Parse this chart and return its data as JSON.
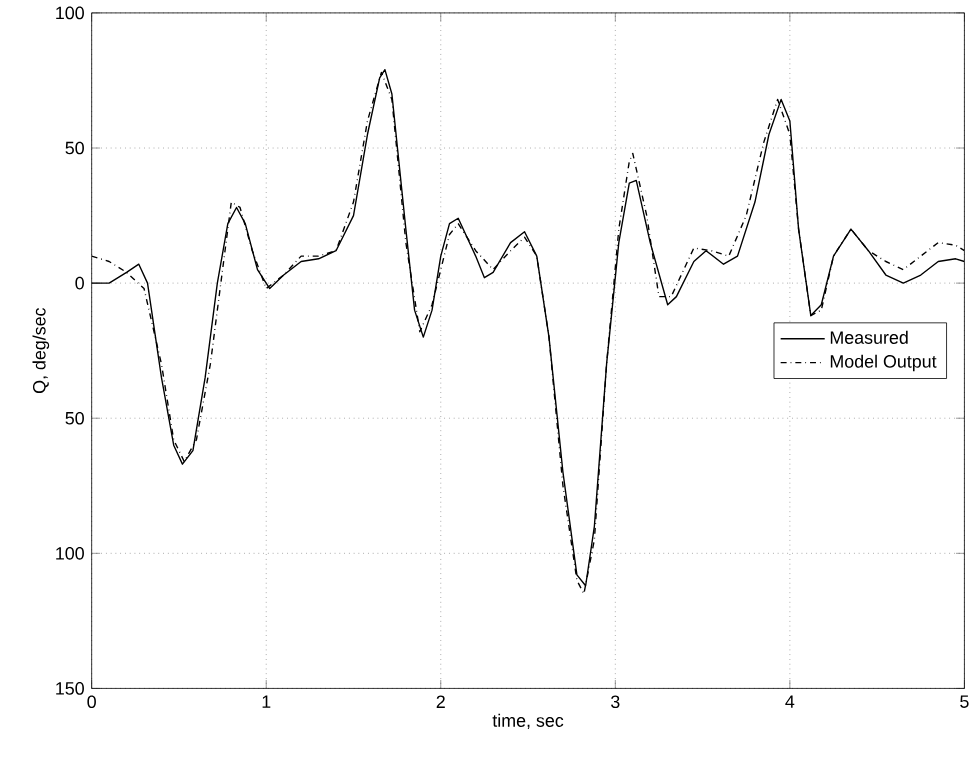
{
  "chart_data": {
    "type": "line",
    "xlabel": "time, sec",
    "ylabel": "Q, deg/sec",
    "xlim": [
      0,
      5
    ],
    "ylim": [
      -150,
      100
    ],
    "xticks": [
      0,
      1,
      2,
      3,
      4,
      5
    ],
    "yticks": [
      100,
      50,
      0,
      {
        "value": -50,
        "label": "50"
      },
      {
        "value": -100,
        "label": "100"
      },
      {
        "value": -150,
        "label": "150"
      }
    ],
    "grid": true,
    "legend": "right",
    "series": [
      {
        "name": "Measured",
        "color": "#000000",
        "line_style": "solid",
        "x": [
          0,
          0.1,
          0.2,
          0.27,
          0.32,
          0.4,
          0.47,
          0.52,
          0.58,
          0.65,
          0.72,
          0.78,
          0.83,
          0.88,
          0.95,
          1.02,
          1.1,
          1.2,
          1.3,
          1.4,
          1.5,
          1.58,
          1.65,
          1.68,
          1.72,
          1.8,
          1.85,
          1.9,
          1.95,
          2.0,
          2.05,
          2.1,
          2.2,
          2.25,
          2.3,
          2.4,
          2.48,
          2.55,
          2.62,
          2.7,
          2.78,
          2.83,
          2.88,
          2.95,
          3.02,
          3.08,
          3.12,
          3.2,
          3.3,
          3.35,
          3.45,
          3.52,
          3.62,
          3.7,
          3.8,
          3.88,
          3.95,
          4.0,
          4.05,
          4.12,
          4.18,
          4.25,
          4.35,
          4.45,
          4.55,
          4.65,
          4.75,
          4.85,
          4.95,
          5.0
        ],
        "values": [
          0,
          0,
          4,
          7,
          0,
          -35,
          -60,
          -67,
          -62,
          -35,
          0,
          22,
          28,
          22,
          5,
          -2,
          3,
          8,
          9,
          12,
          25,
          55,
          76,
          79,
          70,
          20,
          -10,
          -20,
          -10,
          10,
          22,
          24,
          10,
          2,
          4,
          15,
          19,
          10,
          -20,
          -70,
          -108,
          -112,
          -90,
          -30,
          15,
          37,
          38,
          15,
          -8,
          -5,
          8,
          12,
          7,
          10,
          30,
          55,
          68,
          60,
          20,
          -12,
          -8,
          10,
          20,
          12,
          3,
          0,
          3,
          8,
          9,
          8
        ]
      },
      {
        "name": "Model Output",
        "color": "#000000",
        "line_style": "dashdot",
        "x": [
          0,
          0.1,
          0.2,
          0.3,
          0.4,
          0.47,
          0.53,
          0.6,
          0.68,
          0.75,
          0.8,
          0.85,
          0.92,
          1.0,
          1.1,
          1.2,
          1.3,
          1.4,
          1.5,
          1.58,
          1.66,
          1.72,
          1.8,
          1.88,
          1.95,
          2.0,
          2.05,
          2.1,
          2.2,
          2.3,
          2.4,
          2.48,
          2.55,
          2.62,
          2.7,
          2.78,
          2.82,
          2.88,
          2.95,
          3.02,
          3.08,
          3.1,
          3.18,
          3.25,
          3.32,
          3.45,
          3.55,
          3.65,
          3.75,
          3.85,
          3.93,
          4.0,
          4.05,
          4.12,
          4.18,
          4.25,
          4.35,
          4.45,
          4.55,
          4.65,
          4.75,
          4.85,
          4.95,
          5.0
        ],
        "values": [
          10,
          8,
          4,
          -2,
          -30,
          -58,
          -66,
          -58,
          -30,
          5,
          30,
          28,
          12,
          -2,
          3,
          10,
          10,
          12,
          30,
          60,
          78,
          68,
          15,
          -18,
          -8,
          5,
          18,
          22,
          12,
          5,
          12,
          17,
          10,
          -20,
          -75,
          -110,
          -115,
          -95,
          -30,
          20,
          45,
          48,
          25,
          -5,
          -5,
          13,
          12,
          10,
          25,
          52,
          68,
          55,
          20,
          -12,
          -10,
          10,
          20,
          12,
          8,
          5,
          10,
          15,
          14,
          12
        ]
      }
    ]
  }
}
